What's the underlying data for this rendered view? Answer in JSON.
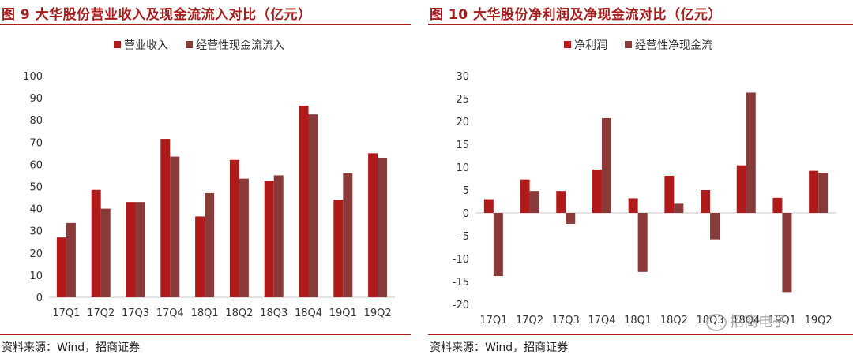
{
  "colors": {
    "primary": "#b01a1a",
    "secondary": "#8b3a3a",
    "title": "#a61d1d",
    "axis": "#c8c8c8"
  },
  "left": {
    "title": "图 9  大华股份营业收入及现金流流入对比（亿元）",
    "source": "资料来源：Wind，招商证券"
  },
  "right": {
    "title": "图 10  大华股份净利润及净现金流对比（亿元）",
    "source": "资料来源：Wind，招商证券",
    "watermark": "招商电子"
  },
  "chart_data": [
    {
      "type": "bar",
      "categories": [
        "17Q1",
        "17Q2",
        "17Q3",
        "17Q4",
        "18Q1",
        "18Q2",
        "18Q3",
        "18Q4",
        "19Q1",
        "19Q2"
      ],
      "series": [
        {
          "name": "营业收入",
          "values": [
            27,
            48.5,
            43,
            71.5,
            36.5,
            62,
            52.5,
            86.5,
            44,
            65
          ]
        },
        {
          "name": "经营性现金流流入",
          "values": [
            33.5,
            40,
            43,
            63.5,
            47,
            53.5,
            55,
            82.5,
            56,
            63
          ]
        }
      ],
      "ylim": [
        0,
        100
      ],
      "yticks": [
        0,
        10,
        20,
        30,
        40,
        50,
        60,
        70,
        80,
        90,
        100
      ],
      "legend": "top"
    },
    {
      "type": "bar",
      "categories": [
        "17Q1",
        "17Q2",
        "17Q3",
        "17Q4",
        "18Q1",
        "18Q2",
        "18Q3",
        "18Q4",
        "19Q1",
        "19Q2"
      ],
      "series": [
        {
          "name": "净利润",
          "values": [
            3,
            7.3,
            4.8,
            9.5,
            3.2,
            8.1,
            5,
            10.4,
            3.3,
            9.2
          ]
        },
        {
          "name": "经营性净现金流",
          "values": [
            -13.8,
            4.8,
            -2.4,
            20.7,
            -12.9,
            2,
            -5.8,
            26.3,
            -17.3,
            8.8
          ]
        }
      ],
      "ylim": [
        -20,
        30
      ],
      "yticks": [
        -20,
        -15,
        -10,
        -5,
        0,
        5,
        10,
        15,
        20,
        25,
        30
      ],
      "legend": "top"
    }
  ]
}
